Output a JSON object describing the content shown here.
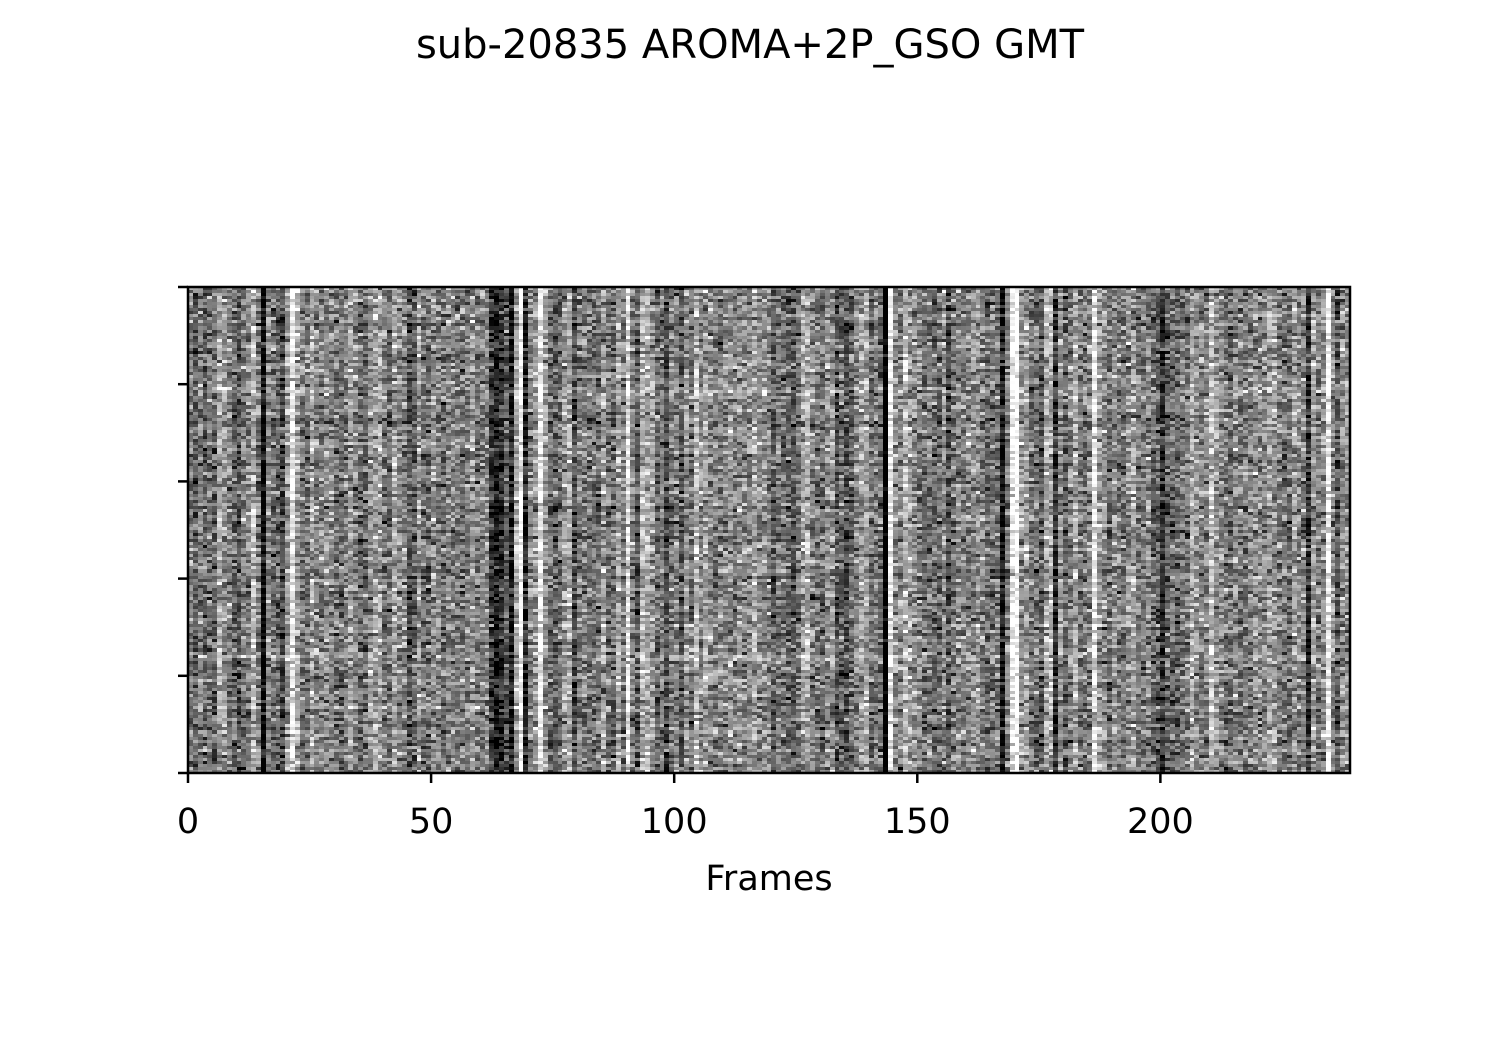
{
  "chart_data": {
    "type": "heatmap",
    "title": "sub-20835 AROMA+2P_GSO GMT",
    "xlabel": "Frames",
    "ylabel": "",
    "xlim": [
      0,
      239
    ],
    "x_ticks": [
      0,
      50,
      100,
      150,
      200
    ],
    "y_tick_count": 6,
    "y_tick_labels_shown": false,
    "colormap": "gray",
    "value_range": [
      -1,
      1
    ],
    "n_frames": 239,
    "n_rows": 160,
    "grid": false,
    "legend": "none",
    "colorbar": false
  }
}
